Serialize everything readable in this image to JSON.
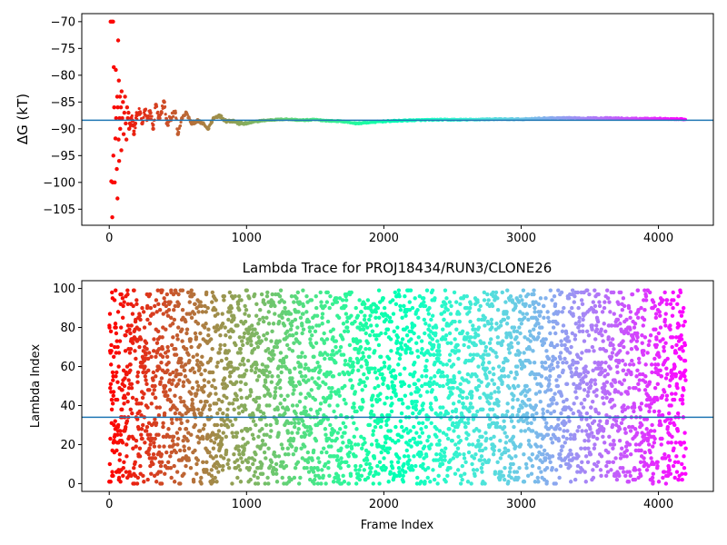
{
  "chart_data": [
    {
      "type": "scatter",
      "title": "",
      "xlabel": "",
      "ylabel": "ΔG (kT)",
      "xlim": [
        -200,
        4400
      ],
      "ylim": [
        -108,
        -68.5
      ],
      "xticks": [
        0,
        1000,
        2000,
        3000,
        4000
      ],
      "yticks": [
        -105,
        -100,
        -95,
        -90,
        -85,
        -80,
        -75,
        -70
      ],
      "hline": -88.4,
      "colormap": "rainbow",
      "color_by": "frame_index",
      "n_frames": 4200,
      "series": [
        {
          "x": [
            10,
            15,
            20,
            22,
            25,
            28,
            30,
            33,
            36,
            40,
            45,
            48,
            50,
            55,
            58,
            60,
            62,
            65,
            68,
            70,
            72,
            75,
            78,
            80,
            85,
            88,
            90,
            95,
            100,
            105,
            110,
            115,
            120,
            125,
            130,
            135,
            140,
            145,
            150,
            160,
            170,
            180,
            190,
            200,
            220,
            240,
            260,
            280,
            300,
            320,
            340,
            360,
            380,
            400,
            420,
            450,
            480,
            500,
            530,
            560,
            600,
            640,
            680,
            720,
            760,
            800,
            850,
            900,
            950,
            1000,
            1100,
            1200,
            1300,
            1400,
            1500,
            1600,
            1700,
            1800,
            1900,
            2000,
            2200,
            2400,
            2600,
            2800,
            3000,
            3200,
            3400,
            3600,
            3800,
            4000,
            4200
          ],
          "y": [
            -70,
            -99.8,
            -70,
            -106.5,
            -100,
            -70,
            -95,
            -78.5,
            -86,
            -100,
            -91.8,
            -79,
            -88,
            -97.5,
            -84,
            -103,
            -86,
            -73.5,
            -92,
            -81,
            -96,
            -88,
            -84,
            -90,
            -86,
            -94,
            -83,
            -88,
            -85,
            -91,
            -87,
            -84,
            -89,
            -92,
            -86,
            -88,
            -87,
            -90,
            -89,
            -88,
            -88.5,
            -91,
            -89,
            -87.5,
            -87,
            -89,
            -86.5,
            -88,
            -87,
            -90,
            -85.5,
            -88,
            -87,
            -85,
            -89,
            -88,
            -87,
            -91,
            -88,
            -87,
            -89,
            -88.5,
            -89,
            -90,
            -88,
            -87.5,
            -88.5,
            -88.5,
            -89,
            -89,
            -88.5,
            -88.3,
            -88.2,
            -88.4,
            -88.3,
            -88.5,
            -88.6,
            -89,
            -88.8,
            -88.6,
            -88.4,
            -88.3,
            -88.3,
            -88.2,
            -88.2,
            -88,
            -88,
            -88,
            -88.1,
            -88.1,
            -88.2
          ]
        }
      ]
    },
    {
      "type": "scatter",
      "title": "Lambda Trace for PROJ18434/RUN3/CLONE26",
      "xlabel": "Frame Index",
      "ylabel": "Lambda Index",
      "xlim": [
        -200,
        4400
      ],
      "ylim": [
        -4,
        104
      ],
      "xticks": [
        0,
        1000,
        2000,
        3000,
        4000
      ],
      "yticks": [
        0,
        20,
        40,
        60,
        80,
        100
      ],
      "hline": 34,
      "colormap": "rainbow",
      "color_by": "frame_index",
      "n_frames": 4200,
      "value_range": [
        0,
        99
      ],
      "note_series": "approximately 4200 points spread uniformly over lambda 0–99"
    }
  ],
  "colors": {
    "hline": "#1f77b4",
    "axes": "#000000"
  }
}
